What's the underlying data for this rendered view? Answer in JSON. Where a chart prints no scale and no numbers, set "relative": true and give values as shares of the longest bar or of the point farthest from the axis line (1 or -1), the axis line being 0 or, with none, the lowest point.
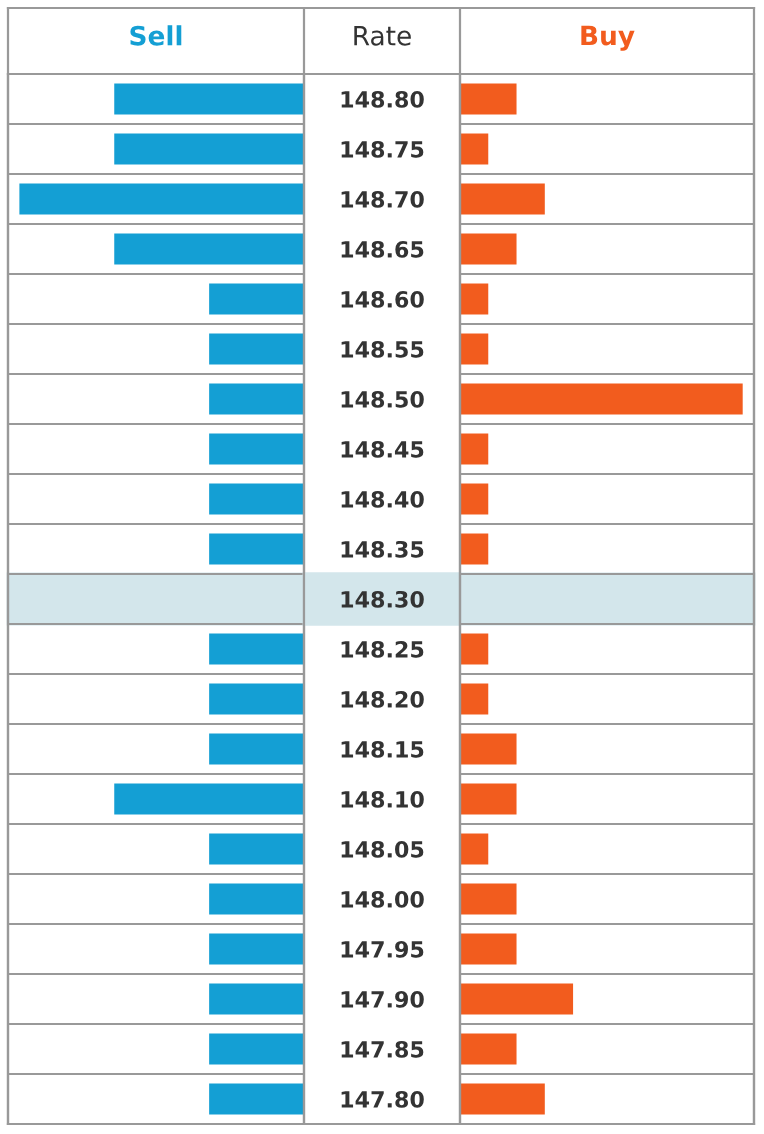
{
  "chart_data": [
    {
      "type": "bar",
      "orientation": "horizontal",
      "relative": true,
      "tick_labels": false,
      "categories": [
        "148.80",
        "148.75",
        "148.70",
        "148.65",
        "148.60",
        "148.55",
        "148.50",
        "148.45",
        "148.40",
        "148.35",
        "148.30",
        "148.25",
        "148.20",
        "148.15",
        "148.10",
        "148.05",
        "148.00",
        "147.95",
        "147.90",
        "147.85",
        "147.80"
      ],
      "series": [
        {
          "name": "Sell",
          "color": "#149fd4",
          "values": [
            0.6667,
            0.6667,
            1,
            0.6667,
            0.3333,
            0.3333,
            0.3333,
            0.3333,
            0.3333,
            0.3333,
            0,
            0.3333,
            0.3333,
            0.3333,
            0.6667,
            0.3333,
            0.3333,
            0.3333,
            0.3333,
            0.3333,
            0.3333
          ]
        }
      ],
      "bands": [
        {
          "axis": "y",
          "from": "148.30",
          "to": "148.30",
          "color": "#d3e6eb"
        }
      ]
    },
    {
      "type": "bar",
      "orientation": "horizontal",
      "relative": true,
      "ylabel": "Rate",
      "categories": [
        "148.80",
        "148.75",
        "148.70",
        "148.65",
        "148.60",
        "148.55",
        "148.50",
        "148.45",
        "148.40",
        "148.35",
        "148.30",
        "148.25",
        "148.20",
        "148.15",
        "148.10",
        "148.05",
        "148.00",
        "147.95",
        "147.90",
        "147.85",
        "147.80"
      ],
      "series": [
        {
          "name": "Buy",
          "color": "#f25c1e",
          "values": [
            0.2,
            0.1,
            0.3,
            0.2,
            0.1,
            0.1,
            1,
            0.1,
            0.1,
            0.1,
            0,
            0.1,
            0.1,
            0.2,
            0.2,
            0.1,
            0.2,
            0.2,
            0.4,
            0.2,
            0.3
          ]
        }
      ],
      "bands": [
        {
          "axis": "y",
          "from": "148.30",
          "to": "148.30",
          "color": "#d3e6eb"
        }
      ]
    }
  ]
}
